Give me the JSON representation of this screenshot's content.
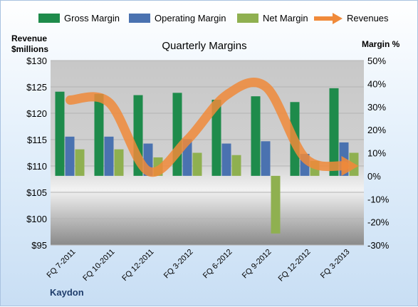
{
  "chart_data": {
    "type": "bar",
    "title": "Quarterly Margins",
    "company": "Kaydon",
    "left_axis_title_line1": "Revenue",
    "left_axis_title_line2": "$millions",
    "right_axis_title": "Margin %",
    "categories": [
      "FQ 7-2011",
      "FQ 10-2011",
      "FQ 12-2011",
      "FQ 3-2012",
      "FQ 6-2012",
      "FQ 9-2012",
      "FQ 12-2012",
      "FQ 3-2013"
    ],
    "left_axis": {
      "label": "Revenue $millions",
      "ylim": [
        95,
        130
      ],
      "ticks": [
        "$95",
        "$100",
        "$105",
        "$110",
        "$115",
        "$120",
        "$125",
        "$130"
      ]
    },
    "right_axis": {
      "label": "Margin %",
      "ylim": [
        -30,
        50
      ],
      "ticks": [
        "-30%",
        "-20%",
        "-10%",
        "0%",
        "10%",
        "20%",
        "30%",
        "40%",
        "50%"
      ]
    },
    "series": [
      {
        "name": "Gross Margin",
        "type": "bar",
        "axis": "right",
        "color": "#1e8b4b",
        "values": [
          36.5,
          35.5,
          35.0,
          36.0,
          33.0,
          34.5,
          32.0,
          38.0
        ]
      },
      {
        "name": "Operating Margin",
        "type": "bar",
        "axis": "right",
        "color": "#4a72b0",
        "values": [
          17.0,
          17.0,
          14.0,
          16.0,
          14.0,
          15.0,
          9.5,
          14.5
        ]
      },
      {
        "name": "Net Margin",
        "type": "bar",
        "axis": "right",
        "color": "#8fb050",
        "values": [
          11.5,
          11.5,
          8.0,
          10.0,
          9.0,
          -25.0,
          6.5,
          10.0
        ]
      },
      {
        "name": "Revenues",
        "type": "line",
        "axis": "left",
        "color": "#f08a3a",
        "values": [
          122.5,
          122.0,
          109.0,
          115.0,
          123.5,
          125.0,
          111.5,
          110.0
        ]
      }
    ],
    "grid": true
  }
}
